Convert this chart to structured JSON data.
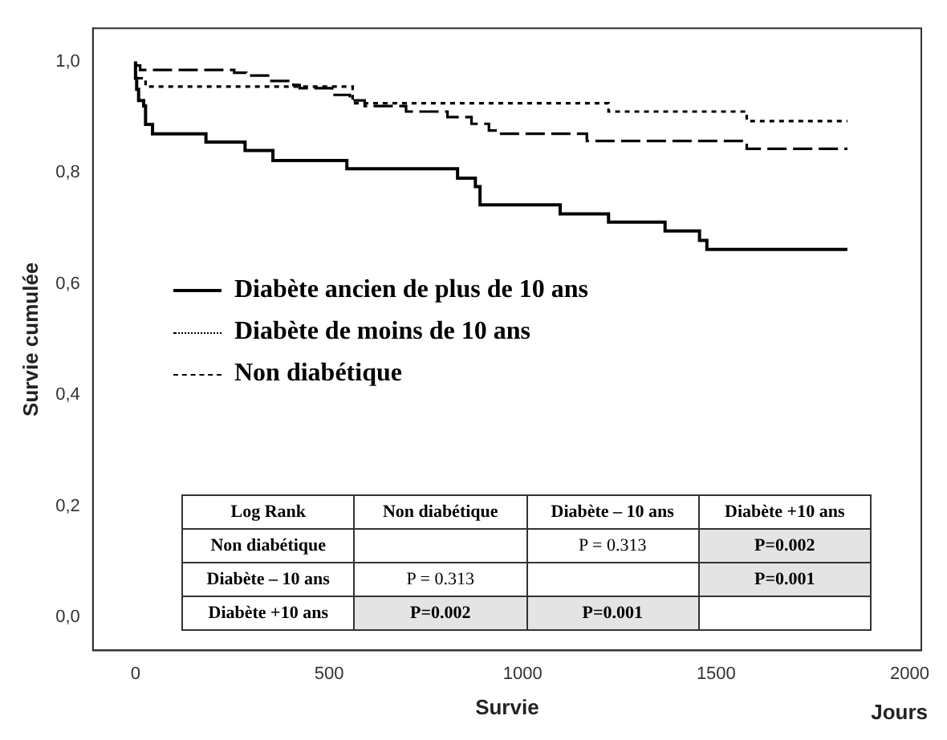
{
  "chart_data": {
    "type": "step",
    "xlabel": "Survie",
    "ylabel": "Survie cumulée",
    "xlim": [
      -110,
      2030
    ],
    "ylim": [
      -0.06,
      1.06
    ],
    "xticks": [
      0,
      500,
      1000,
      1500,
      2000
    ],
    "yticks": [
      {
        "value": 0,
        "label": "0,0"
      },
      {
        "value": 0.2,
        "label": "0,2"
      },
      {
        "value": 0.4,
        "label": "0,4"
      },
      {
        "value": 0.6,
        "label": "0,6"
      },
      {
        "value": 0.8,
        "label": "0,8"
      },
      {
        "value": 1,
        "label": "1,0"
      }
    ],
    "grid": false,
    "legend": "left",
    "marker": "none",
    "series": [
      {
        "name": "Diabète ancien de plus de 10 ans",
        "color": "#000000",
        "line_style": "solid",
        "x": [
          0,
          3,
          8,
          21,
          26,
          44,
          182,
          283,
          355,
          546,
          832,
          878,
          890,
          1097,
          1222,
          1368,
          1457,
          1476,
          1740,
          1839
        ],
        "values": [
          1,
          0.97,
          0.95,
          0.93,
          0.92,
          0.887,
          0.87,
          0.855,
          0.84,
          0.822,
          0.807,
          0.79,
          0.775,
          0.742,
          0.726,
          0.711,
          0.695,
          0.678,
          0.662,
          0.662
        ]
      },
      {
        "name": "Diabète de moins de 10 ans",
        "color": "#000000",
        "line_style": "dotted",
        "x": [
          0,
          26,
          561,
          1222,
          1579,
          1778,
          1839
        ],
        "values": [
          1,
          0.97,
          0.955,
          0.925,
          0.91,
          0.893,
          0.893
        ]
      },
      {
        "name": "Non diabétique",
        "color": "#000000",
        "line_style": "dashed",
        "x": [
          0,
          12,
          255,
          286,
          347,
          408,
          424,
          508,
          554,
          592,
          699,
          806,
          868,
          913,
          936,
          1166,
          1579,
          1709,
          1839
        ],
        "values": [
          1,
          0.993,
          0.985,
          0.98,
          0.975,
          0.965,
          0.958,
          0.952,
          0.94,
          0.93,
          0.92,
          0.91,
          0.9,
          0.888,
          0.876,
          0.87,
          0.857,
          0.843,
          0.843
        ]
      }
    ],
    "annotations": [
      "Jours",
      "Log Rank",
      "Non diabétique",
      "Diabète – 10 ans",
      "Diabète +10 ans",
      "Non diabétique",
      "P = 0.313",
      "P=0.002",
      "Diabète – 10 ans",
      "P = 0.313",
      "P=0.001",
      "Diabète +10 ans",
      "P=0.002",
      "P=0.001"
    ]
  }
}
